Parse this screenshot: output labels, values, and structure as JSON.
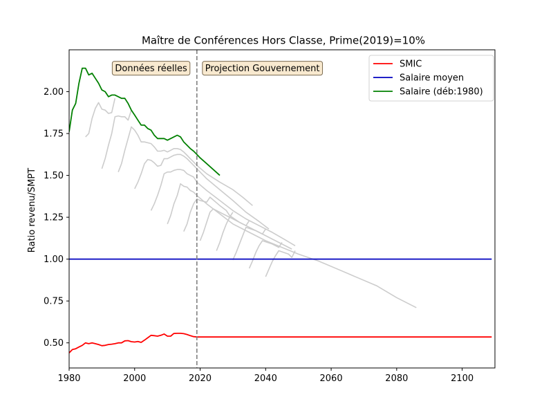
{
  "chart_data": {
    "type": "line",
    "title": "Maître de Conférences Hors Classe, Prime(2019)=10%",
    "xlabel": "",
    "ylabel": "Ratio revenu/SMPT",
    "xlim": [
      1980,
      2110
    ],
    "ylim": [
      0.35,
      2.25
    ],
    "x_ticks": [
      1980,
      2000,
      2020,
      2040,
      2060,
      2080,
      2100
    ],
    "y_ticks": [
      0.5,
      0.75,
      1.0,
      1.25,
      1.5,
      1.75,
      2.0
    ],
    "y_tick_labels": [
      "0.50",
      "0.75",
      "1.00",
      "1.25",
      "1.50",
      "1.75",
      "2.00"
    ],
    "grid": false,
    "legend_position": "upper-right",
    "vline": {
      "x": 2019,
      "color": "#808080",
      "style": "dashed"
    },
    "annotations": [
      {
        "text": "Données réelles",
        "x": 2019,
        "y": 2.14,
        "align": "right"
      },
      {
        "text": "Projection Gouvernement",
        "x": 2019,
        "y": 2.14,
        "align": "left"
      }
    ],
    "series": [
      {
        "name": "SMIC",
        "color": "#ff0000",
        "points": [
          [
            1980,
            0.44
          ],
          [
            1981,
            0.46
          ],
          [
            1982,
            0.465
          ],
          [
            1983,
            0.475
          ],
          [
            1984,
            0.485
          ],
          [
            1985,
            0.5
          ],
          [
            1986,
            0.495
          ],
          [
            1987,
            0.5
          ],
          [
            1988,
            0.495
          ],
          [
            1989,
            0.49
          ],
          [
            1990,
            0.483
          ],
          [
            1991,
            0.485
          ],
          [
            1992,
            0.49
          ],
          [
            1993,
            0.492
          ],
          [
            1994,
            0.495
          ],
          [
            1995,
            0.5
          ],
          [
            1996,
            0.5
          ],
          [
            1997,
            0.512
          ],
          [
            1998,
            0.513
          ],
          [
            1999,
            0.507
          ],
          [
            2000,
            0.505
          ],
          [
            2001,
            0.508
          ],
          [
            2002,
            0.503
          ],
          [
            2003,
            0.516
          ],
          [
            2004,
            0.53
          ],
          [
            2005,
            0.545
          ],
          [
            2006,
            0.543
          ],
          [
            2007,
            0.54
          ],
          [
            2008,
            0.545
          ],
          [
            2009,
            0.553
          ],
          [
            2010,
            0.54
          ],
          [
            2011,
            0.54
          ],
          [
            2012,
            0.556
          ],
          [
            2013,
            0.557
          ],
          [
            2014,
            0.557
          ],
          [
            2015,
            0.555
          ],
          [
            2016,
            0.55
          ],
          [
            2017,
            0.543
          ],
          [
            2018,
            0.537
          ],
          [
            2019,
            0.535
          ],
          [
            2020,
            0.535
          ],
          [
            2030,
            0.535
          ],
          [
            2040,
            0.535
          ],
          [
            2060,
            0.535
          ],
          [
            2080,
            0.535
          ],
          [
            2100,
            0.535
          ],
          [
            2109,
            0.535
          ]
        ]
      },
      {
        "name": "Salaire moyen",
        "color": "#0000bf",
        "points": [
          [
            1980,
            1.0
          ],
          [
            2109,
            1.0
          ]
        ]
      },
      {
        "name": "Salaire (déb:1980)",
        "color": "#008000",
        "points": [
          [
            1980,
            1.76
          ],
          [
            1981,
            1.89
          ],
          [
            1982,
            1.93
          ],
          [
            1983,
            2.05
          ],
          [
            1984,
            2.14
          ],
          [
            1985,
            2.14
          ],
          [
            1986,
            2.1
          ],
          [
            1987,
            2.11
          ],
          [
            1988,
            2.08
          ],
          [
            1989,
            2.05
          ],
          [
            1990,
            2.01
          ],
          [
            1991,
            2.0
          ],
          [
            1992,
            1.97
          ],
          [
            1993,
            1.98
          ],
          [
            1994,
            1.98
          ],
          [
            1995,
            1.97
          ],
          [
            1996,
            1.96
          ],
          [
            1997,
            1.96
          ],
          [
            1998,
            1.93
          ],
          [
            1999,
            1.89
          ],
          [
            2000,
            1.86
          ],
          [
            2001,
            1.83
          ],
          [
            2002,
            1.8
          ],
          [
            2003,
            1.8
          ],
          [
            2004,
            1.78
          ],
          [
            2005,
            1.77
          ],
          [
            2006,
            1.74
          ],
          [
            2007,
            1.72
          ],
          [
            2008,
            1.72
          ],
          [
            2009,
            1.72
          ],
          [
            2010,
            1.71
          ],
          [
            2011,
            1.72
          ],
          [
            2012,
            1.73
          ],
          [
            2013,
            1.74
          ],
          [
            2014,
            1.73
          ],
          [
            2015,
            1.7
          ],
          [
            2016,
            1.68
          ],
          [
            2017,
            1.66
          ],
          [
            2018,
            1.645
          ],
          [
            2019,
            1.625
          ],
          [
            2020,
            1.605
          ],
          [
            2022,
            1.57
          ],
          [
            2024,
            1.535
          ],
          [
            2026,
            1.5
          ]
        ]
      }
    ],
    "background_series": {
      "color": "#cccccc",
      "lines": [
        [
          [
            1985,
            1.73
          ],
          [
            1986,
            1.75
          ],
          [
            1987,
            1.84
          ],
          [
            1988,
            1.9
          ],
          [
            1989,
            1.935
          ],
          [
            1990,
            1.895
          ],
          [
            1991,
            1.89
          ],
          [
            1992,
            1.87
          ],
          [
            1993,
            1.875
          ],
          [
            1994,
            1.96
          ]
        ],
        [
          [
            1990,
            1.54
          ],
          [
            1991,
            1.6
          ],
          [
            1992,
            1.68
          ],
          [
            1993,
            1.75
          ],
          [
            1994,
            1.85
          ],
          [
            1995,
            1.855
          ],
          [
            1996,
            1.85
          ],
          [
            1997,
            1.85
          ],
          [
            1998,
            1.83
          ],
          [
            1999,
            1.89
          ]
        ],
        [
          [
            1995,
            1.52
          ],
          [
            1996,
            1.57
          ],
          [
            1997,
            1.65
          ],
          [
            1998,
            1.72
          ],
          [
            1999,
            1.79
          ],
          [
            2000,
            1.77
          ],
          [
            2001,
            1.74
          ],
          [
            2002,
            1.7
          ],
          [
            2003,
            1.7
          ],
          [
            2004,
            1.695
          ],
          [
            2005,
            1.69
          ],
          [
            2006,
            1.67
          ],
          [
            2007,
            1.645
          ],
          [
            2008,
            1.645
          ],
          [
            2009,
            1.65
          ],
          [
            2010,
            1.64
          ],
          [
            2011,
            1.65
          ],
          [
            2012,
            1.66
          ],
          [
            2013,
            1.66
          ],
          [
            2014,
            1.655
          ],
          [
            2015,
            1.64
          ],
          [
            2016,
            1.62
          ],
          [
            2017,
            1.6
          ],
          [
            2018,
            1.58
          ],
          [
            2019,
            1.56
          ],
          [
            2022,
            1.51
          ],
          [
            2026,
            1.46
          ],
          [
            2030,
            1.415
          ],
          [
            2033,
            1.37
          ],
          [
            2036,
            1.32
          ]
        ],
        [
          [
            2000,
            1.42
          ],
          [
            2001,
            1.46
          ],
          [
            2002,
            1.51
          ],
          [
            2003,
            1.57
          ],
          [
            2004,
            1.595
          ],
          [
            2005,
            1.59
          ],
          [
            2006,
            1.575
          ],
          [
            2007,
            1.555
          ],
          [
            2008,
            1.56
          ],
          [
            2009,
            1.6
          ],
          [
            2010,
            1.6
          ],
          [
            2011,
            1.61
          ],
          [
            2012,
            1.62
          ],
          [
            2013,
            1.625
          ],
          [
            2014,
            1.625
          ],
          [
            2015,
            1.615
          ],
          [
            2016,
            1.6
          ],
          [
            2017,
            1.58
          ],
          [
            2018,
            1.56
          ],
          [
            2019,
            1.54
          ],
          [
            2022,
            1.48
          ],
          [
            2026,
            1.415
          ],
          [
            2030,
            1.35
          ],
          [
            2034,
            1.28
          ],
          [
            2038,
            1.225
          ],
          [
            2041,
            1.18
          ]
        ],
        [
          [
            2005,
            1.29
          ],
          [
            2006,
            1.33
          ],
          [
            2007,
            1.38
          ],
          [
            2008,
            1.44
          ],
          [
            2009,
            1.51
          ],
          [
            2010,
            1.52
          ],
          [
            2011,
            1.52
          ],
          [
            2012,
            1.53
          ],
          [
            2013,
            1.535
          ],
          [
            2014,
            1.535
          ],
          [
            2015,
            1.53
          ],
          [
            2016,
            1.51
          ],
          [
            2017,
            1.5
          ],
          [
            2018,
            1.49
          ],
          [
            2019,
            1.46
          ],
          [
            2022,
            1.41
          ],
          [
            2026,
            1.35
          ],
          [
            2030,
            1.29
          ],
          [
            2034,
            1.24
          ],
          [
            2038,
            1.2
          ],
          [
            2042,
            1.16
          ],
          [
            2046,
            1.115
          ],
          [
            2049,
            1.08
          ]
        ],
        [
          [
            2010,
            1.21
          ],
          [
            2011,
            1.26
          ],
          [
            2012,
            1.33
          ],
          [
            2013,
            1.38
          ],
          [
            2014,
            1.45
          ],
          [
            2015,
            1.435
          ],
          [
            2016,
            1.43
          ],
          [
            2017,
            1.41
          ],
          [
            2018,
            1.4
          ],
          [
            2019,
            1.38
          ],
          [
            2022,
            1.33
          ],
          [
            2026,
            1.27
          ],
          [
            2030,
            1.21
          ],
          [
            2035,
            1.16
          ],
          [
            2040,
            1.11
          ],
          [
            2045,
            1.07
          ],
          [
            2050,
            1.03
          ],
          [
            2056,
            0.99
          ],
          [
            2062,
            0.94
          ],
          [
            2068,
            0.89
          ],
          [
            2074,
            0.84
          ],
          [
            2080,
            0.77
          ],
          [
            2086,
            0.71
          ]
        ],
        [
          [
            2015,
            1.165
          ],
          [
            2016,
            1.21
          ],
          [
            2017,
            1.28
          ],
          [
            2018,
            1.33
          ],
          [
            2019,
            1.36
          ],
          [
            2020,
            1.35
          ],
          [
            2022,
            1.34
          ],
          [
            2023,
            1.37
          ],
          [
            2026,
            1.32
          ],
          [
            2028,
            1.29
          ],
          [
            2029,
            1.26
          ],
          [
            2032,
            1.22
          ],
          [
            2034,
            1.2
          ],
          [
            2038,
            1.16
          ],
          [
            2042,
            1.12
          ],
          [
            2048,
            1.06
          ]
        ],
        [
          [
            2020,
            1.11
          ],
          [
            2021,
            1.16
          ],
          [
            2022,
            1.22
          ],
          [
            2023,
            1.28
          ],
          [
            2024,
            1.3
          ],
          [
            2027,
            1.27
          ],
          [
            2029,
            1.25
          ],
          [
            2030,
            1.28
          ]
        ],
        [
          [
            2025,
            1.05
          ],
          [
            2026,
            1.1
          ],
          [
            2027,
            1.16
          ],
          [
            2028,
            1.21
          ],
          [
            2029,
            1.25
          ],
          [
            2032,
            1.22
          ],
          [
            2034,
            1.2
          ],
          [
            2035,
            1.23
          ]
        ],
        [
          [
            2030,
            0.995
          ],
          [
            2031,
            1.04
          ],
          [
            2032,
            1.09
          ],
          [
            2033,
            1.14
          ],
          [
            2034,
            1.19
          ],
          [
            2037,
            1.17
          ],
          [
            2039,
            1.15
          ],
          [
            2040,
            1.18
          ]
        ],
        [
          [
            2035,
            0.945
          ],
          [
            2036,
            0.99
          ],
          [
            2037,
            1.04
          ],
          [
            2038,
            1.08
          ],
          [
            2039,
            1.11
          ],
          [
            2042,
            1.09
          ],
          [
            2044,
            1.07
          ],
          [
            2045,
            1.1
          ]
        ],
        [
          [
            2040,
            0.895
          ],
          [
            2041,
            0.94
          ],
          [
            2042,
            0.985
          ],
          [
            2043,
            1.02
          ],
          [
            2044,
            1.05
          ],
          [
            2047,
            1.03
          ],
          [
            2048,
            1.01
          ],
          [
            2049,
            1.05
          ]
        ]
      ]
    }
  }
}
